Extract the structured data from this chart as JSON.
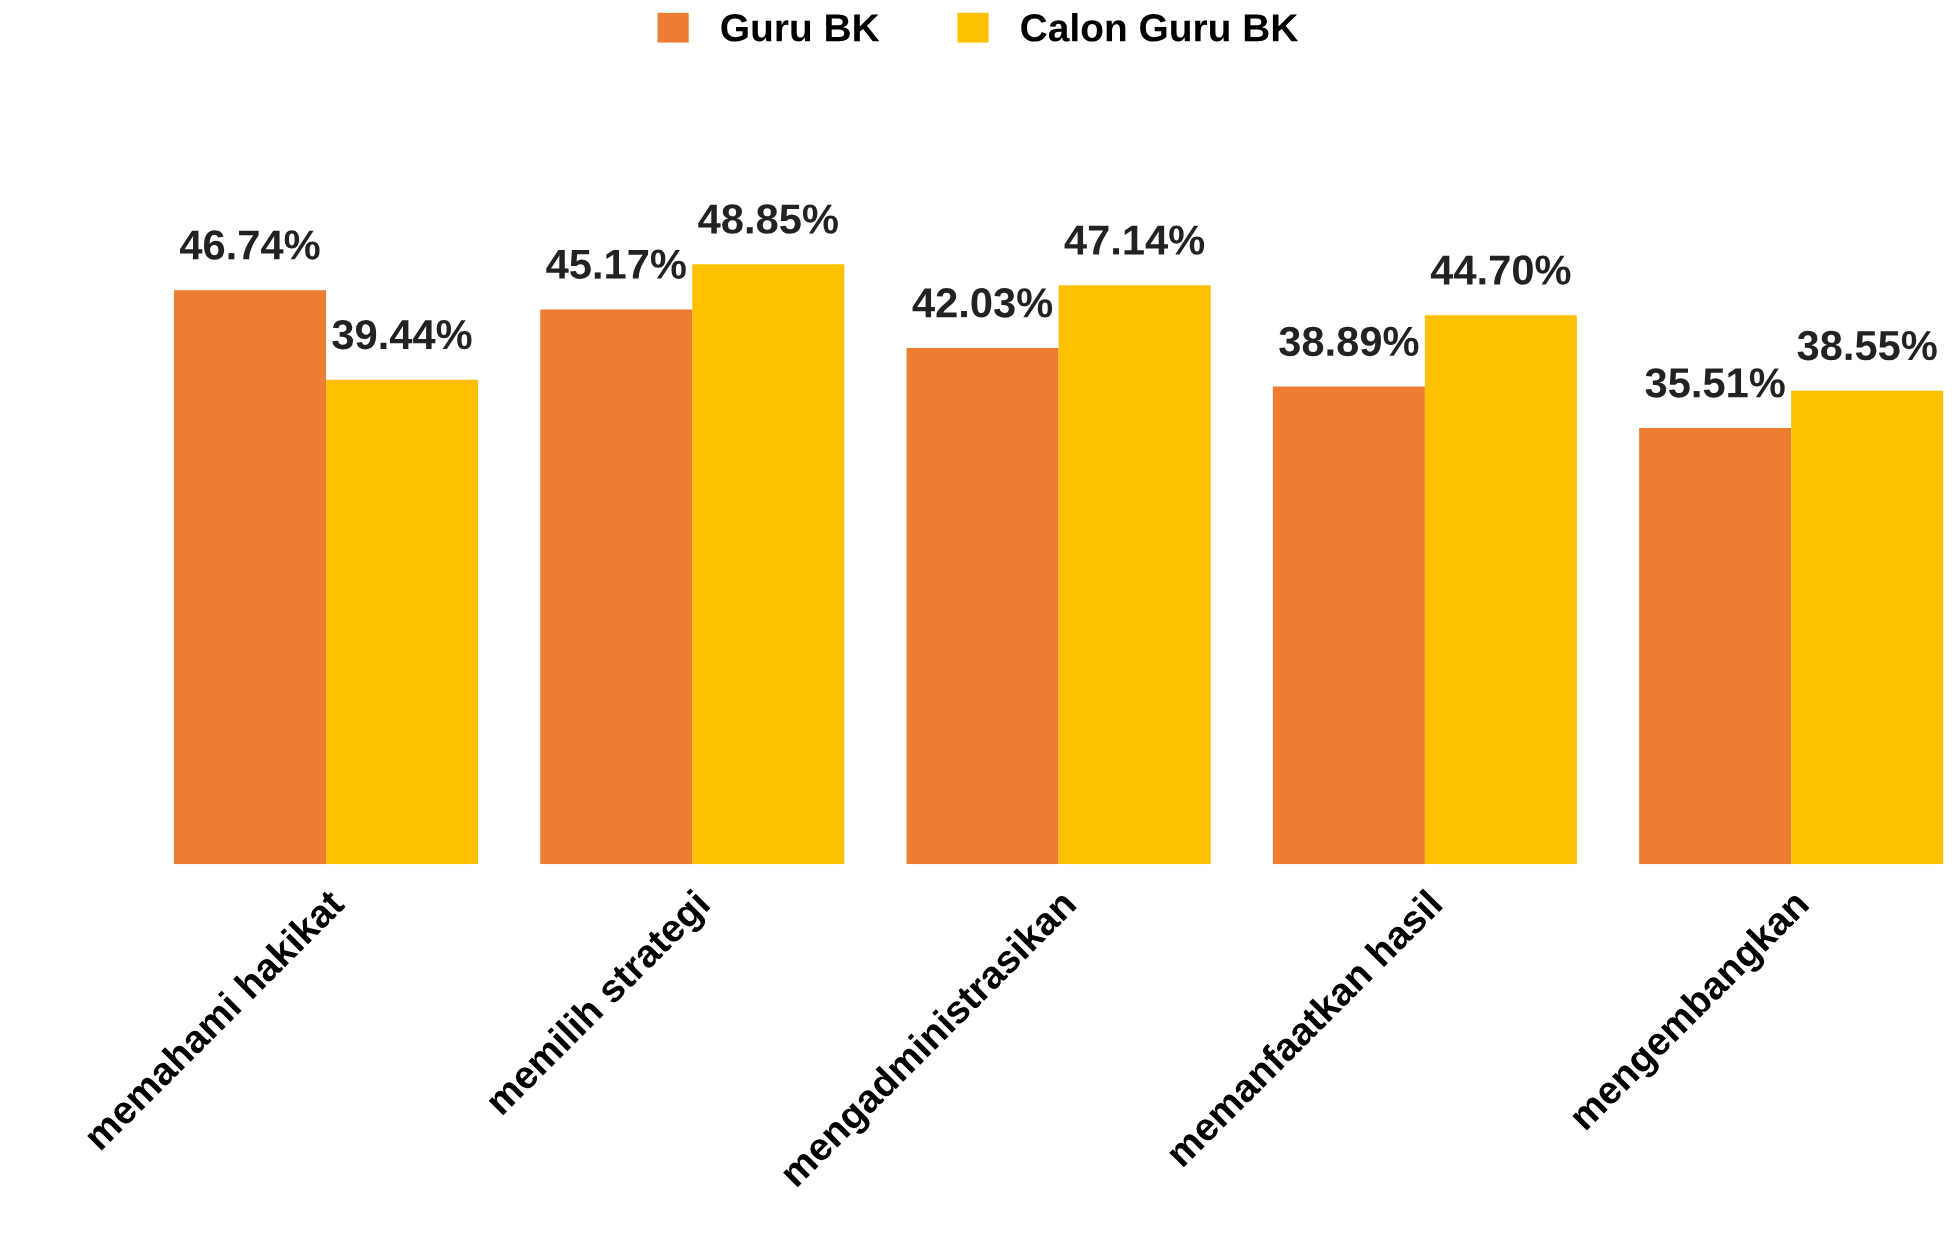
{
  "chart_data": {
    "type": "bar",
    "categories": [
      "memahami hakikat",
      "memilih strategi",
      "mengadministrasikan",
      "memanfaatkan hasil",
      "mengembangkan"
    ],
    "series": [
      {
        "name": "Guru BK",
        "color": "#ed7d31",
        "values": [
          46.74,
          45.17,
          42.03,
          38.89,
          35.51
        ],
        "value_labels": [
          "46.74%",
          "45.17%",
          "42.03%",
          "38.89%",
          "35.51%"
        ]
      },
      {
        "name": "Calon Guru BK",
        "color": "#ffc000",
        "values": [
          39.44,
          48.85,
          47.14,
          44.7,
          38.55
        ],
        "value_labels": [
          "39.44%",
          "48.85%",
          "47.14%",
          "44.70%",
          "38.55%"
        ]
      }
    ],
    "relative": false,
    "legend": "top",
    "grid": false
  }
}
